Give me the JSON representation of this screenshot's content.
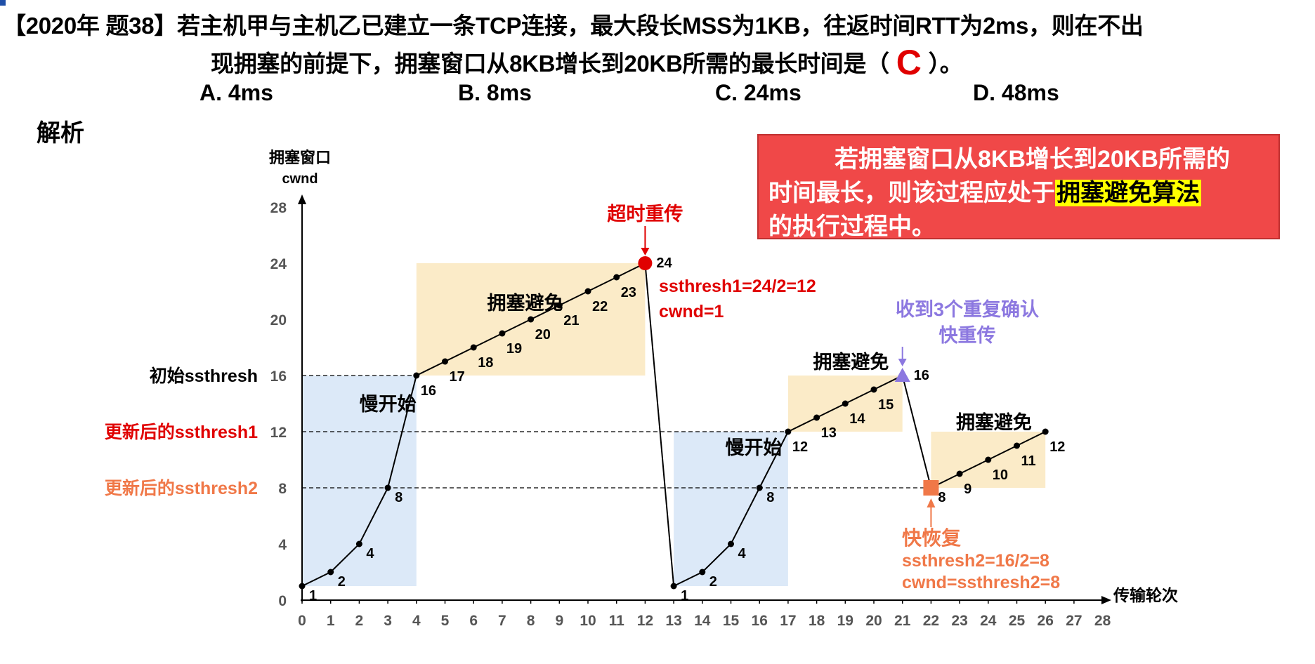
{
  "question": {
    "line1": "【2020年 题38】若主机甲与主机乙已建立一条TCP连接，最大段长MSS为1KB，往返时间RTT为2ms，则在不出",
    "line2_before": "现拥塞的前提下，拥塞窗口从8KB增长到20KB所需的最长时间是（",
    "answer": "C",
    "line2_after": "）。",
    "options": [
      "A. 4ms",
      "B. 8ms",
      "C. 24ms",
      "D. 48ms"
    ]
  },
  "analysis_label": "解析",
  "callout": {
    "line1": "若拥塞窗口从8KB增长到20KB所需的",
    "line2_before": "时间最长，则该过程应处于",
    "highlight": "拥塞避免算法",
    "line3": "的执行过程中。"
  },
  "colors": {
    "slow_start_fill": "#dce9f8",
    "congestion_avoid_fill": "#fbebc8",
    "red": "#e00000",
    "orange": "#f07848",
    "purple": "#8c78e0",
    "callout_bg": "#f04848"
  },
  "chart_data": {
    "type": "line",
    "ylabel": "拥塞窗口\ncwnd",
    "xlabel": "传输轮次",
    "xlim": [
      0,
      28
    ],
    "ylim": [
      0,
      28
    ],
    "xticks": [
      0,
      1,
      2,
      3,
      4,
      5,
      6,
      7,
      8,
      9,
      10,
      11,
      12,
      13,
      14,
      15,
      16,
      17,
      18,
      19,
      20,
      21,
      22,
      23,
      24,
      25,
      26,
      27,
      28
    ],
    "yticks": [
      0,
      4,
      8,
      12,
      16,
      20,
      24,
      28
    ],
    "x": [
      0,
      1,
      2,
      3,
      4,
      5,
      6,
      7,
      8,
      9,
      10,
      11,
      12,
      13,
      14,
      15,
      16,
      17,
      18,
      19,
      20,
      21,
      22,
      23,
      24,
      25,
      26
    ],
    "cwnd": [
      1,
      2,
      4,
      8,
      16,
      17,
      18,
      19,
      20,
      21,
      22,
      23,
      24,
      1,
      2,
      4,
      8,
      12,
      13,
      14,
      15,
      16,
      8,
      9,
      10,
      11,
      12
    ],
    "point_labels": [
      "1",
      "2",
      "4",
      "8",
      "16",
      "17",
      "18",
      "19",
      "20",
      "21",
      "22",
      "23",
      "24",
      "1",
      "2",
      "4",
      "8",
      "12",
      "13",
      "14",
      "15",
      "16",
      "8",
      "9",
      "10",
      "11",
      "12"
    ],
    "ssthresh_lines": [
      {
        "label": "初始ssthresh",
        "value": 16,
        "x_end": 4
      },
      {
        "label": "更新后的ssthresh1",
        "value": 12,
        "x_end": 17
      },
      {
        "label": "更新后的ssthresh2",
        "value": 8,
        "x_end": 22
      }
    ],
    "regions": [
      {
        "label": "慢开始",
        "kind": "slow_start",
        "x0": 0,
        "x1": 4,
        "y0": 1,
        "y1": 16
      },
      {
        "label": "拥塞避免",
        "kind": "congestion_avoid",
        "x0": 4,
        "x1": 12,
        "y0": 16,
        "y1": 24
      },
      {
        "label": "慢开始",
        "kind": "slow_start",
        "x0": 13,
        "x1": 17,
        "y0": 1,
        "y1": 12
      },
      {
        "label": "拥塞避免",
        "kind": "congestion_avoid",
        "x0": 17,
        "x1": 21,
        "y0": 12,
        "y1": 16
      },
      {
        "label": "拥塞避免",
        "kind": "congestion_avoid",
        "x0": 22,
        "x1": 26,
        "y0": 8,
        "y1": 12
      }
    ],
    "annotations": {
      "timeout": {
        "title": "超时重传",
        "x": 12,
        "y": 24,
        "notes": [
          "ssthresh1=24/2=12",
          "cwnd=1"
        ]
      },
      "triple_ack": {
        "lines": [
          "收到3个重复确认",
          "快重传"
        ],
        "x": 21,
        "y": 16
      },
      "fast_recovery": {
        "title": "快恢复",
        "x": 22,
        "y": 8,
        "notes": [
          "ssthresh2=16/2=8",
          "cwnd=ssthresh2=8"
        ]
      }
    }
  }
}
